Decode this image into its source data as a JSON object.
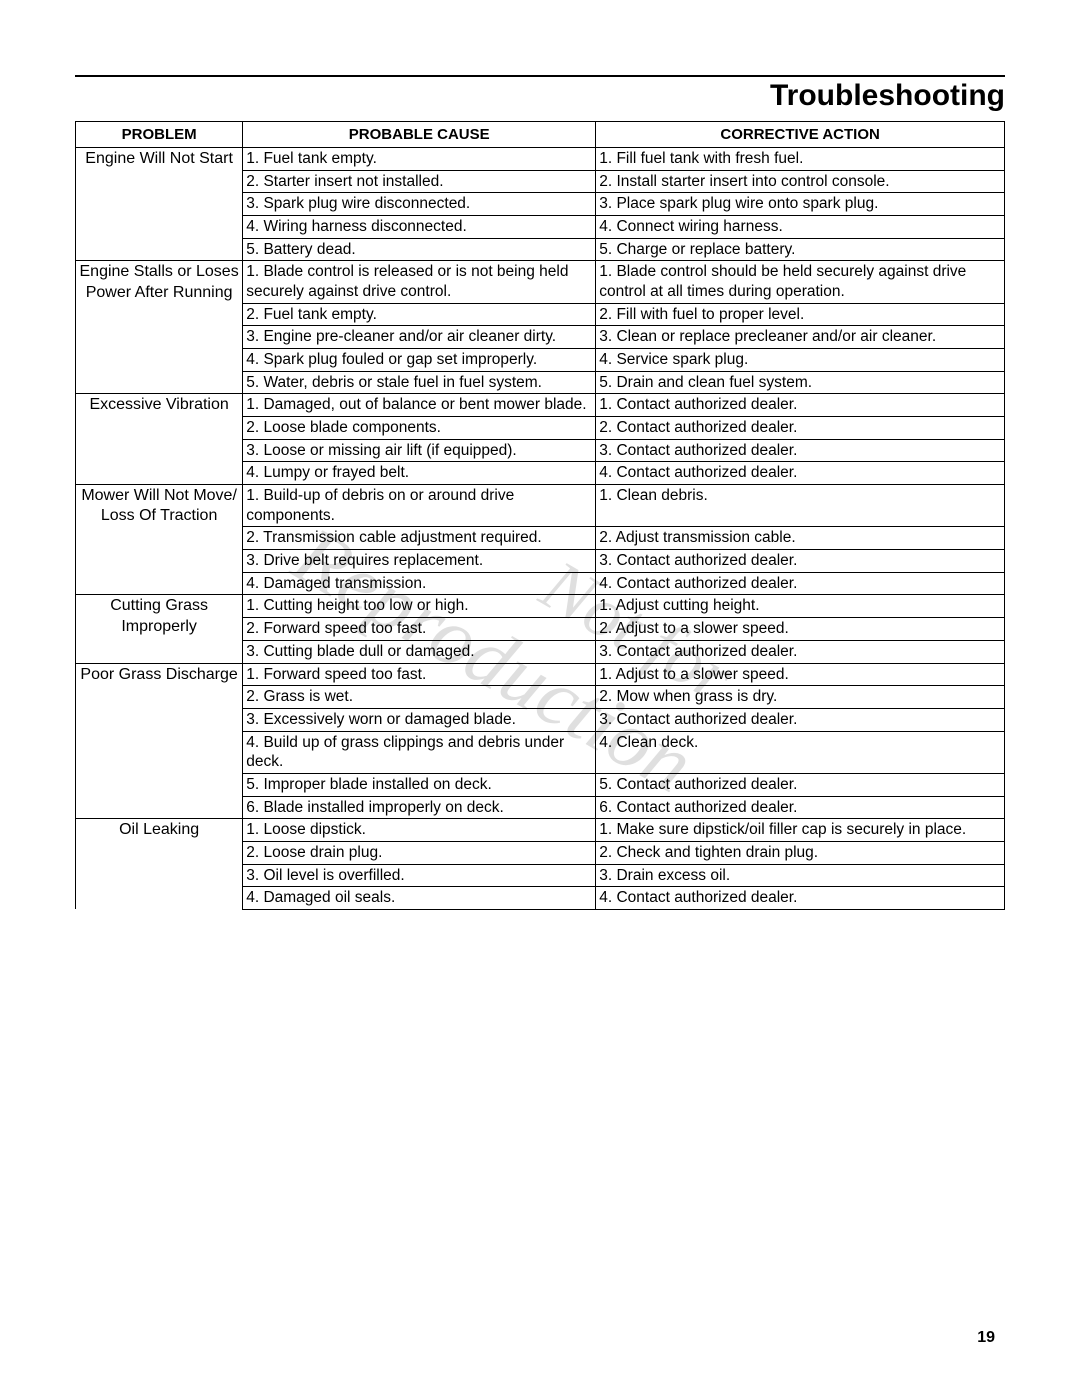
{
  "page": {
    "title": "Troubleshooting",
    "page_number": "19",
    "colors": {
      "text": "#000000",
      "background": "#ffffff",
      "rule": "#000000",
      "watermark": "#000000"
    },
    "typography": {
      "title_fontsize_pt": 22,
      "title_weight": "bold",
      "body_fontsize_pt": 11.5,
      "header_weight": "bold",
      "font_family": "Arial"
    }
  },
  "table": {
    "type": "table",
    "columns": [
      "PROBLEM",
      "PROBABLE CAUSE",
      "CORRECTIVE ACTION"
    ],
    "column_align": [
      "center",
      "left",
      "left"
    ],
    "column_widths_pct": [
      18,
      38,
      44
    ],
    "border_color": "#000000",
    "groups": [
      {
        "problem": "Engine Will Not Start",
        "rows": [
          {
            "cause": "1. Fuel tank empty.",
            "action": "1. Fill fuel tank with fresh fuel."
          },
          {
            "cause": "2. Starter insert not installed.",
            "action": "2. Install starter insert into control console."
          },
          {
            "cause": "3. Spark plug wire disconnected.",
            "action": "3. Place spark plug wire onto spark plug."
          },
          {
            "cause": "4. Wiring harness disconnected.",
            "action": "4. Connect wiring harness."
          },
          {
            "cause": "5. Battery dead.",
            "action": "5. Charge or replace battery."
          }
        ]
      },
      {
        "problem": "Engine Stalls or Loses Power After Running",
        "rows": [
          {
            "cause": "1. Blade control is released or is not being held securely against drive control.",
            "action": "1. Blade control should be held securely against drive control at all times during operation."
          },
          {
            "cause": "2. Fuel tank empty.",
            "action": "2. Fill with fuel to proper level."
          },
          {
            "cause": "3. Engine pre-cleaner and/or air cleaner dirty.",
            "action": "3. Clean or replace precleaner and/or air cleaner."
          },
          {
            "cause": "4. Spark plug fouled or gap set improperly.",
            "action": "4. Service spark plug."
          },
          {
            "cause": "5. Water, debris or stale fuel in fuel system.",
            "action": "5. Drain and clean fuel system."
          }
        ]
      },
      {
        "problem": "Excessive Vibration",
        "rows": [
          {
            "cause": "1. Damaged, out of balance or bent mower blade.",
            "action": "1. Contact authorized dealer."
          },
          {
            "cause": "2. Loose blade components.",
            "action": "2. Contact authorized dealer."
          },
          {
            "cause": "3. Loose or missing air lift (if equipped).",
            "action": "3. Contact authorized dealer."
          },
          {
            "cause": "4. Lumpy or frayed belt.",
            "action": "4. Contact authorized dealer."
          }
        ]
      },
      {
        "problem": "Mower Will Not Move/ Loss Of Traction",
        "rows": [
          {
            "cause": "1. Build-up of debris on or around drive components.",
            "action": "1. Clean debris."
          },
          {
            "cause": "2. Transmission cable adjustment required.",
            "action": "2. Adjust transmission cable."
          },
          {
            "cause": "3. Drive belt requires replacement.",
            "action": "3. Contact authorized dealer."
          },
          {
            "cause": "4. Damaged transmission.",
            "action": "4. Contact authorized dealer."
          }
        ]
      },
      {
        "problem": "Cutting Grass Improperly",
        "rows": [
          {
            "cause": "1. Cutting height too low or high.",
            "action": "1. Adjust cutting height."
          },
          {
            "cause": "2. Forward speed too fast.",
            "action": "2. Adjust to a slower speed."
          },
          {
            "cause": "3. Cutting blade dull or damaged.",
            "action": "3. Contact authorized dealer."
          }
        ]
      },
      {
        "problem": "Poor Grass Discharge",
        "rows": [
          {
            "cause": "1. Forward speed too fast.",
            "action": "1. Adjust to a slower speed."
          },
          {
            "cause": "2. Grass is wet.",
            "action": "2. Mow when grass is dry."
          },
          {
            "cause": "3. Excessively worn or damaged blade.",
            "action": "3. Contact authorized dealer."
          },
          {
            "cause": "4. Build up of grass clippings and debris under deck.",
            "action": "4. Clean deck."
          },
          {
            "cause": "5. Improper blade installed on deck.",
            "action": "5. Contact authorized dealer."
          },
          {
            "cause": "6. Blade installed improperly on deck.",
            "action": "6. Contact authorized dealer."
          }
        ]
      },
      {
        "problem": "Oil Leaking",
        "rows": [
          {
            "cause": "1. Loose dipstick.",
            "action": "1. Make sure dipstick/oil filler cap is securely in place."
          },
          {
            "cause": "2. Loose drain plug.",
            "action": "2. Check and tighten drain plug."
          },
          {
            "cause": "3. Oil level is overfilled.",
            "action": "3. Drain excess oil."
          },
          {
            "cause": "4. Damaged oil seals.",
            "action": "4. Contact authorized dealer."
          }
        ]
      }
    ]
  },
  "watermark": {
    "line1": "Not for",
    "line2": "Reproduction",
    "rotate_deg": 30,
    "opacity": 0.12,
    "font_family": "Times New Roman"
  }
}
